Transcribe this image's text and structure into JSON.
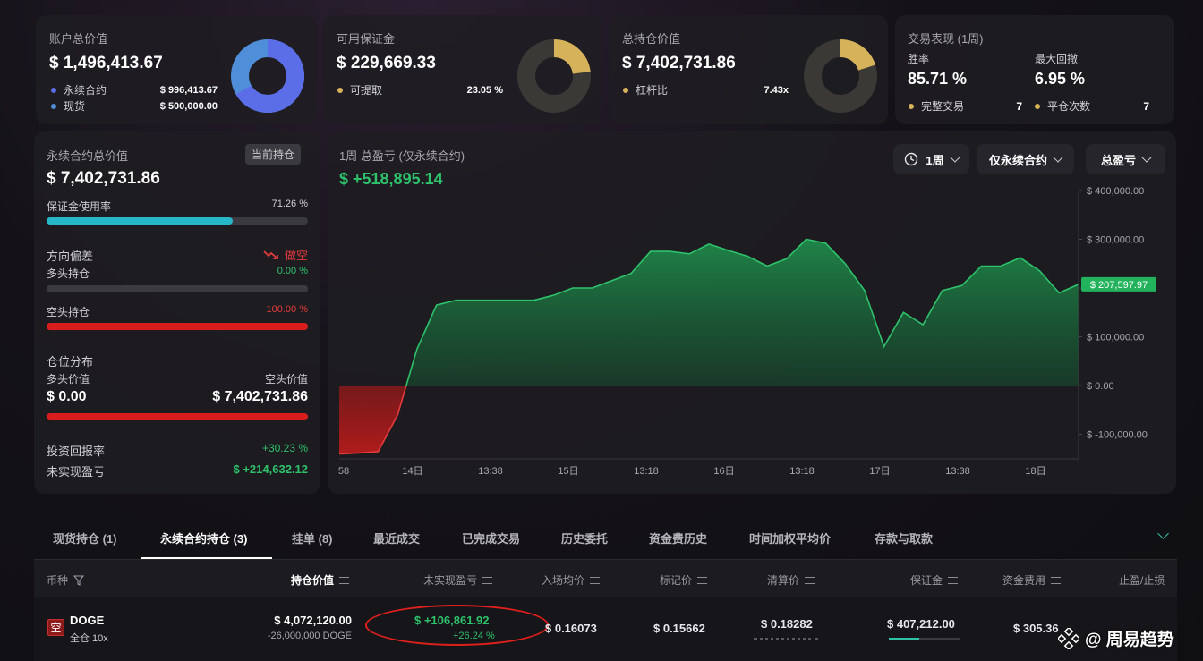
{
  "account": {
    "title": "账户总价值",
    "value": "$ 1,496,413.67",
    "rows": [
      {
        "label": "永续合约",
        "value": "$ 996,413.67",
        "color": "#5b6ee8"
      },
      {
        "label": "现货",
        "value": "$ 500,000.00",
        "color": "#4f8fd9"
      }
    ],
    "donut": [
      996413.67,
      500000
    ]
  },
  "margin": {
    "title": "可用保证金",
    "value": "$ 229,669.33",
    "row": {
      "label": "可提取",
      "value": "23.05 %",
      "color": "#d6b25a"
    },
    "fraction": 0.2305
  },
  "position_total": {
    "title": "总持仓价值",
    "value": "$ 7,402,731.86",
    "row": {
      "label": "杠杆比",
      "value": "7.43x",
      "color": "#d6b25a"
    },
    "fraction": 0.2
  },
  "performance": {
    "title": "交易表现 (1周)",
    "win_label": "胜率",
    "win_value": "85.71 %",
    "dd_label": "最大回撤",
    "dd_value": "6.95 %",
    "trades_label": "完整交易",
    "trades_value": "7",
    "close_label": "平仓次数",
    "close_value": "7"
  },
  "perp": {
    "title": "永续合约总价值",
    "badge": "当前持仓",
    "value": "$ 7,402,731.86",
    "margin_usage_label": "保证金使用率",
    "margin_usage_value": "71.26 %",
    "margin_usage": 0.7126,
    "bias_label": "方向偏差",
    "bias_value": "做空",
    "long_label": "多头持仓",
    "long_value": "0.00 %",
    "long_fraction": 0,
    "short_label": "空头持仓",
    "short_value": "100.00 %",
    "short_fraction": 1,
    "dist_label": "仓位分布",
    "long_val_label": "多头价值",
    "short_val_label": "空头价值",
    "long_val": "$ 0.00",
    "short_val": "$ 7,402,731.86",
    "roi_label": "投资回报率",
    "roi_value": "+30.23 %",
    "upnl_label": "未实现盈亏",
    "upnl_value": "$ +214,632.12"
  },
  "pnl_chart": {
    "title": "1周 总盈亏 (仅永续合约)",
    "value": "$ +518,895.14",
    "period": "1周",
    "filter": "仅永续合约",
    "metric": "总盈亏",
    "current_label": "$ 207,597.97"
  },
  "chart_data": {
    "type": "area",
    "y_ticks": [
      "$ 400,000.00",
      "$ 300,000.00",
      "$ 200,000.00",
      "$ 100,000.00",
      "$ 0.00",
      "$ -100,000.00"
    ],
    "x_ticks": [
      "58",
      "14日",
      "13:38",
      "15日",
      "13:18",
      "16日",
      "13:18",
      "17日",
      "13:38",
      "18日"
    ],
    "ylim": [
      -150000,
      420000
    ],
    "values": [
      -140000,
      -138000,
      -135000,
      -60000,
      75000,
      165000,
      175000,
      175000,
      175000,
      175000,
      175000,
      185000,
      200000,
      200000,
      215000,
      230000,
      275000,
      275000,
      270000,
      290000,
      277000,
      265000,
      245000,
      260000,
      300000,
      292000,
      250000,
      195000,
      80000,
      150000,
      125000,
      195000,
      205000,
      245000,
      245000,
      262000,
      235000,
      190000,
      207598
    ]
  },
  "tabs": [
    "现货持仓 (1)",
    "永续合约持仓 (3)",
    "挂单 (8)",
    "最近成交",
    "已完成交易",
    "历史委托",
    "资金费历史",
    "时间加权平均价",
    "存款与取款"
  ],
  "table": {
    "headers": {
      "coin": "币种",
      "pos_value": "持仓价值",
      "upnl": "未实现盈亏",
      "entry": "入场均价",
      "mark": "标记价",
      "liq": "清算价",
      "margin": "保证金",
      "funding": "资金费用",
      "tpsl": "止盈/止损"
    },
    "row": {
      "side_badge": "空",
      "coin": "DOGE",
      "mode": "全仓 10x",
      "pos_value": "$ 4,072,120.00",
      "pos_size": "-26,000,000 DOGE",
      "upnl": "$ +106,861.92",
      "upnl_pct": "+26.24 %",
      "entry": "$ 0.16073",
      "mark": "$ 0.15662",
      "liq": "$ 0.18282",
      "margin": "$ 407,212.00",
      "funding": "$ 305.36"
    }
  },
  "watermark": "@ 周易趋势"
}
